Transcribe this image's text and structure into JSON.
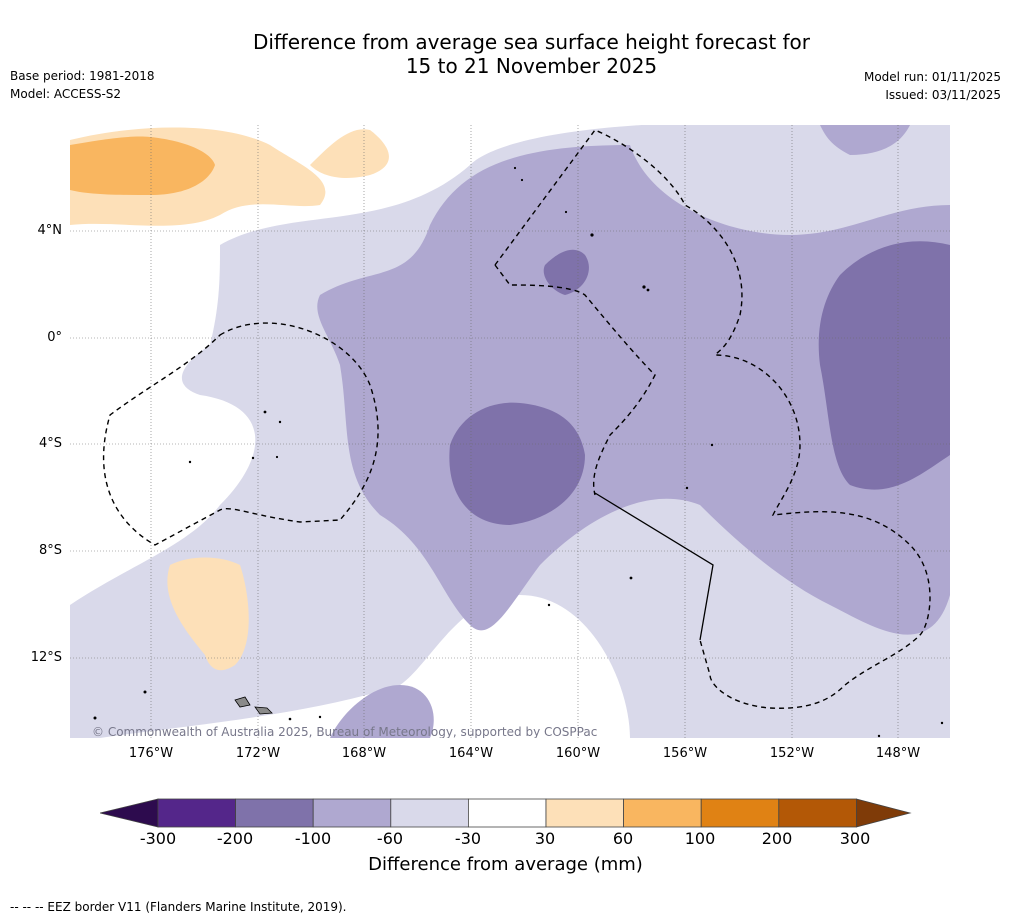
{
  "title_line1": "Difference from average sea surface height forecast for",
  "title_line2": "15 to 21 November 2025",
  "base_period": "Base period: 1981-2018",
  "model": "Model: ACCESS-S2",
  "model_run": "Model run: 01/11/2025",
  "issued": "Issued: 03/11/2025",
  "lat_labels": [
    "4°N",
    "0°",
    "4°S",
    "8°S",
    "12°S"
  ],
  "lon_labels": [
    "176°W",
    "172°W",
    "168°W",
    "164°W",
    "160°W",
    "156°W",
    "152°W",
    "148°W"
  ],
  "copyright": "© Commonwealth of Australia 2025, Bureau of Meteorology, supported by COSPPac",
  "colorbar": {
    "labels": [
      "-300",
      "-200",
      "-100",
      "-60",
      "-30",
      "30",
      "60",
      "100",
      "200",
      "300"
    ],
    "colors": [
      "#2d0b4e",
      "#54268a",
      "#7f72aa",
      "#afa8d0",
      "#d9d9ea",
      "#ffffff",
      "#fde0b8",
      "#f9b660",
      "#e08214",
      "#b35806",
      "#7f3b08"
    ],
    "title": "Difference from average (mm)"
  },
  "footnote": "--  --  -- EEZ border V11 (Flanders Marine Institute, 2019)."
}
